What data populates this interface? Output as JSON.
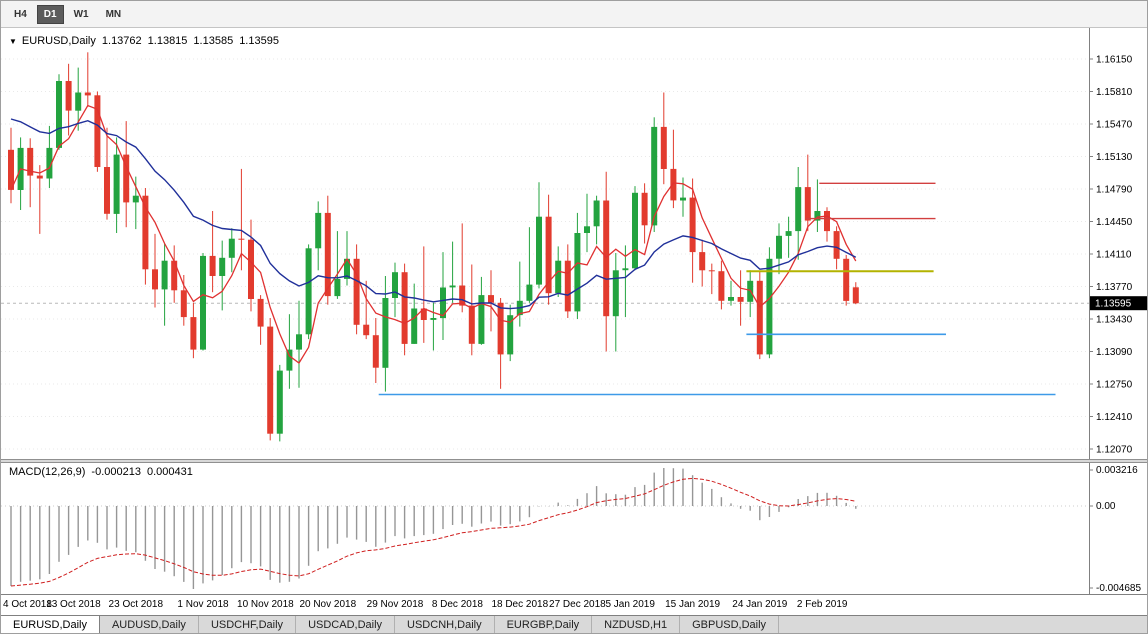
{
  "toolbar": {
    "timeframes": [
      {
        "label": "H4",
        "active": false
      },
      {
        "label": "D1",
        "active": true
      },
      {
        "label": "W1",
        "active": false
      },
      {
        "label": "MN",
        "active": false
      }
    ]
  },
  "chart": {
    "readout": {
      "marker_icon": "▼",
      "symbol": "EURUSD,Daily",
      "open": "1.13762",
      "high": "1.13815",
      "low": "1.13585",
      "close": "1.13595"
    },
    "price_axis": {
      "ticks": [
        "1.16150",
        "1.15810",
        "1.15470",
        "1.15130",
        "1.14790",
        "1.14450",
        "1.14110",
        "1.13770",
        "1.13430",
        "1.13090",
        "1.12750",
        "1.12410",
        "1.12070"
      ],
      "current_price": "1.13595"
    }
  },
  "macd": {
    "title": "MACD(12,26,9)",
    "value_main": "-0.000213",
    "value_signal": "0.000431",
    "axis": {
      "top": "0.003216",
      "zero": "0.00",
      "bottom": "-0.004685"
    }
  },
  "time_axis": {
    "labels": [
      {
        "text": "4 Oct 2018",
        "bar": 0
      },
      {
        "text": "13 Oct 2018",
        "bar": 6.5
      },
      {
        "text": "23 Oct 2018",
        "bar": 13
      },
      {
        "text": "1 Nov 2018",
        "bar": 20
      },
      {
        "text": "10 Nov 2018",
        "bar": 26.5
      },
      {
        "text": "20 Nov 2018",
        "bar": 33
      },
      {
        "text": "29 Nov 2018",
        "bar": 40
      },
      {
        "text": "8 Dec 2018",
        "bar": 46.5
      },
      {
        "text": "18 Dec 2018",
        "bar": 53
      },
      {
        "text": "27 Dec 2018",
        "bar": 59
      },
      {
        "text": "5 Jan 2019",
        "bar": 64.5
      },
      {
        "text": "15 Jan 2019",
        "bar": 71
      },
      {
        "text": "24 Jan 2019",
        "bar": 78
      },
      {
        "text": "2 Feb 2019",
        "bar": 84.5
      }
    ]
  },
  "tabs": [
    {
      "label": "EURUSD,Daily",
      "active": true
    },
    {
      "label": "AUDUSD,Daily",
      "active": false
    },
    {
      "label": "USDCHF,Daily",
      "active": false
    },
    {
      "label": "USDCAD,Daily",
      "active": false
    },
    {
      "label": "USDCNH,Daily",
      "active": false
    },
    {
      "label": "EURGBP,Daily",
      "active": false
    },
    {
      "label": "NZDUSD,H1",
      "active": false
    },
    {
      "label": "GBPUSD,Daily",
      "active": false
    }
  ],
  "chart_data": {
    "type": "candlestick",
    "symbol": "EURUSD",
    "timeframe": "Daily",
    "title": "EURUSD,Daily",
    "ylim": [
      1.1207,
      1.1615
    ],
    "grid": true,
    "colors": {
      "up": "#23a33f",
      "down": "#e23b2e",
      "background": "#ffffff"
    },
    "candles": [
      [
        "2018-10-04",
        1.152,
        1.1543,
        1.1464,
        1.1478
      ],
      [
        "2018-10-05",
        1.1478,
        1.1533,
        1.1457,
        1.1522
      ],
      [
        "2018-10-08",
        1.1522,
        1.1532,
        1.146,
        1.1493
      ],
      [
        "2018-10-09",
        1.1493,
        1.1504,
        1.1432,
        1.149
      ],
      [
        "2018-10-10",
        1.149,
        1.1545,
        1.148,
        1.1522
      ],
      [
        "2018-10-11",
        1.1522,
        1.1599,
        1.152,
        1.1592
      ],
      [
        "2018-10-12",
        1.1592,
        1.161,
        1.1535,
        1.1561
      ],
      [
        "2018-10-15",
        1.1561,
        1.1606,
        1.154,
        1.158
      ],
      [
        "2018-10-16",
        1.158,
        1.1622,
        1.1565,
        1.1577
      ],
      [
        "2018-10-17",
        1.1577,
        1.1581,
        1.1497,
        1.1502
      ],
      [
        "2018-10-18",
        1.1502,
        1.1543,
        1.1447,
        1.1453
      ],
      [
        "2018-10-19",
        1.1453,
        1.1533,
        1.1433,
        1.1515
      ],
      [
        "2018-10-22",
        1.1515,
        1.155,
        1.1439,
        1.1465
      ],
      [
        "2018-10-23",
        1.1465,
        1.1492,
        1.1437,
        1.1472
      ],
      [
        "2018-10-24",
        1.1472,
        1.148,
        1.1379,
        1.1395
      ],
      [
        "2018-10-25",
        1.1395,
        1.1432,
        1.1355,
        1.1374
      ],
      [
        "2018-10-26",
        1.1374,
        1.1422,
        1.1336,
        1.1404
      ],
      [
        "2018-10-29",
        1.1404,
        1.142,
        1.136,
        1.1373
      ],
      [
        "2018-10-30",
        1.1373,
        1.1389,
        1.1336,
        1.1345
      ],
      [
        "2018-10-31",
        1.1345,
        1.136,
        1.1302,
        1.1311
      ],
      [
        "2018-11-01",
        1.1311,
        1.1412,
        1.131,
        1.1409
      ],
      [
        "2018-11-02",
        1.1409,
        1.1456,
        1.1371,
        1.1388
      ],
      [
        "2018-11-05",
        1.1388,
        1.1425,
        1.1352,
        1.1407
      ],
      [
        "2018-11-06",
        1.1407,
        1.1438,
        1.1392,
        1.1427
      ],
      [
        "2018-11-07",
        1.1427,
        1.15,
        1.1394,
        1.1426
      ],
      [
        "2018-11-08",
        1.1426,
        1.1447,
        1.1351,
        1.1364
      ],
      [
        "2018-11-09",
        1.1364,
        1.1368,
        1.1316,
        1.1335
      ],
      [
        "2018-11-12",
        1.1335,
        1.1344,
        1.1216,
        1.1223
      ],
      [
        "2018-11-13",
        1.1223,
        1.1295,
        1.1215,
        1.1289
      ],
      [
        "2018-11-14",
        1.1289,
        1.1348,
        1.127,
        1.1311
      ],
      [
        "2018-11-15",
        1.1311,
        1.1362,
        1.1271,
        1.1327
      ],
      [
        "2018-11-16",
        1.1327,
        1.1421,
        1.1322,
        1.1417
      ],
      [
        "2018-11-19",
        1.1417,
        1.1466,
        1.1394,
        1.1454
      ],
      [
        "2018-11-20",
        1.1454,
        1.1472,
        1.1358,
        1.1367
      ],
      [
        "2018-11-21",
        1.1367,
        1.1435,
        1.1364,
        1.1385
      ],
      [
        "2018-11-22",
        1.1385,
        1.1435,
        1.1378,
        1.1406
      ],
      [
        "2018-11-23",
        1.1406,
        1.1421,
        1.1327,
        1.1337
      ],
      [
        "2018-11-26",
        1.1337,
        1.1383,
        1.1322,
        1.1326
      ],
      [
        "2018-11-27",
        1.1326,
        1.1344,
        1.1276,
        1.1292
      ],
      [
        "2018-11-28",
        1.1292,
        1.1388,
        1.1267,
        1.1365
      ],
      [
        "2018-11-29",
        1.1365,
        1.1402,
        1.1345,
        1.1392
      ],
      [
        "2018-11-30",
        1.1392,
        1.1401,
        1.1305,
        1.1317
      ],
      [
        "2018-12-03",
        1.1317,
        1.138,
        1.1317,
        1.1354
      ],
      [
        "2018-12-04",
        1.1354,
        1.1419,
        1.1318,
        1.1342
      ],
      [
        "2018-12-05",
        1.1342,
        1.136,
        1.131,
        1.1344
      ],
      [
        "2018-12-06",
        1.1344,
        1.1413,
        1.1321,
        1.1376
      ],
      [
        "2018-12-07",
        1.1376,
        1.1424,
        1.136,
        1.1378
      ],
      [
        "2018-12-10",
        1.1378,
        1.1443,
        1.135,
        1.1357
      ],
      [
        "2018-12-11",
        1.1357,
        1.14,
        1.1305,
        1.1317
      ],
      [
        "2018-12-12",
        1.1317,
        1.1387,
        1.1316,
        1.1368
      ],
      [
        "2018-12-13",
        1.1368,
        1.1394,
        1.133,
        1.136
      ],
      [
        "2018-12-14",
        1.136,
        1.1365,
        1.127,
        1.1306
      ],
      [
        "2018-12-17",
        1.1306,
        1.1358,
        1.1299,
        1.1347
      ],
      [
        "2018-12-18",
        1.1347,
        1.1403,
        1.1335,
        1.1362
      ],
      [
        "2018-12-19",
        1.1362,
        1.1439,
        1.136,
        1.1379
      ],
      [
        "2018-12-20",
        1.1379,
        1.1486,
        1.1375,
        1.145
      ],
      [
        "2018-12-21",
        1.145,
        1.1473,
        1.1358,
        1.137
      ],
      [
        "2018-12-24",
        1.137,
        1.1419,
        1.1366,
        1.1404
      ],
      [
        "2018-12-26",
        1.1404,
        1.1421,
        1.1344,
        1.1351
      ],
      [
        "2018-12-27",
        1.1351,
        1.1454,
        1.1343,
        1.1433
      ],
      [
        "2018-12-28",
        1.1433,
        1.1474,
        1.1413,
        1.144
      ],
      [
        "2018-12-31",
        1.144,
        1.1472,
        1.1421,
        1.1467
      ],
      [
        "2019-01-02",
        1.1467,
        1.1497,
        1.1309,
        1.1346
      ],
      [
        "2019-01-03",
        1.1346,
        1.1412,
        1.1309,
        1.1394
      ],
      [
        "2019-01-04",
        1.1394,
        1.142,
        1.1345,
        1.1396
      ],
      [
        "2019-01-07",
        1.1396,
        1.1482,
        1.1394,
        1.1475
      ],
      [
        "2019-01-08",
        1.1475,
        1.1485,
        1.1422,
        1.1441
      ],
      [
        "2019-01-09",
        1.1441,
        1.1554,
        1.1434,
        1.1544
      ],
      [
        "2019-01-10",
        1.1544,
        1.158,
        1.1484,
        1.15
      ],
      [
        "2019-01-11",
        1.15,
        1.1541,
        1.1459,
        1.1467
      ],
      [
        "2019-01-14",
        1.1467,
        1.1491,
        1.145,
        1.147
      ],
      [
        "2019-01-15",
        1.147,
        1.149,
        1.1381,
        1.1413
      ],
      [
        "2019-01-16",
        1.1413,
        1.1426,
        1.1377,
        1.1394
      ],
      [
        "2019-01-17",
        1.1394,
        1.1401,
        1.1369,
        1.1393
      ],
      [
        "2019-01-18",
        1.1393,
        1.1404,
        1.1353,
        1.1362
      ],
      [
        "2019-01-21",
        1.1362,
        1.1383,
        1.1357,
        1.1366
      ],
      [
        "2019-01-22",
        1.1366,
        1.1394,
        1.1336,
        1.1361
      ],
      [
        "2019-01-23",
        1.1361,
        1.1394,
        1.1345,
        1.1383
      ],
      [
        "2019-01-24",
        1.1383,
        1.1393,
        1.1301,
        1.1306
      ],
      [
        "2019-01-25",
        1.1306,
        1.1418,
        1.1302,
        1.1406
      ],
      [
        "2019-01-28",
        1.1406,
        1.1443,
        1.139,
        1.143
      ],
      [
        "2019-01-29",
        1.143,
        1.145,
        1.1407,
        1.1435
      ],
      [
        "2019-01-30",
        1.1435,
        1.1502,
        1.1405,
        1.1481
      ],
      [
        "2019-01-31",
        1.1481,
        1.1515,
        1.1435,
        1.1446
      ],
      [
        "2019-02-01",
        1.1446,
        1.1489,
        1.1434,
        1.1456
      ],
      [
        "2019-02-04",
        1.1456,
        1.146,
        1.1424,
        1.1435
      ],
      [
        "2019-02-05",
        1.1435,
        1.144,
        1.1395,
        1.1406
      ],
      [
        "2019-02-06",
        1.1406,
        1.141,
        1.1357,
        1.1362
      ],
      [
        "2019-02-07",
        1.13762,
        1.13815,
        1.13585,
        1.13595
      ]
    ],
    "indicators": {
      "fast_ma": {
        "type": "sma",
        "period": 5,
        "color": "#e03131"
      },
      "slow_ma": {
        "type": "ema",
        "period": 20,
        "seed": 1.156,
        "color": "#20309a"
      },
      "macd": {
        "fast": 12,
        "slow": 26,
        "signal": 9,
        "seed_fast": 1.155,
        "seed_slow": 1.161,
        "histogram_color": "#969696",
        "signal_color": "#cf1f1f",
        "last_main": -0.000213,
        "last_signal": 0.000431
      }
    },
    "levels": [
      {
        "name": "resistance-line-red-upper",
        "price": 1.1485,
        "from_bar": 84.2,
        "to_bar": 96.3,
        "color": "#d23f3f",
        "width": 1.4
      },
      {
        "name": "resistance-line-red-lower",
        "price": 1.1448,
        "from_bar": 82.8,
        "to_bar": 96.3,
        "color": "#d23f3f",
        "width": 1.4
      },
      {
        "name": "pivot-line-yellow",
        "price": 1.1393,
        "from_bar": 76.6,
        "to_bar": 96.1,
        "color": "#b3b300",
        "width": 2
      },
      {
        "name": "support-line-blue-short",
        "price": 1.1327,
        "from_bar": 76.6,
        "to_bar": 97.4,
        "color": "#3d9ae8",
        "width": 1.6
      },
      {
        "name": "support-line-blue-long",
        "price": 1.1264,
        "from_bar": 38.3,
        "to_bar": 108.8,
        "color": "#3d9ae8",
        "width": 1.6
      }
    ]
  }
}
